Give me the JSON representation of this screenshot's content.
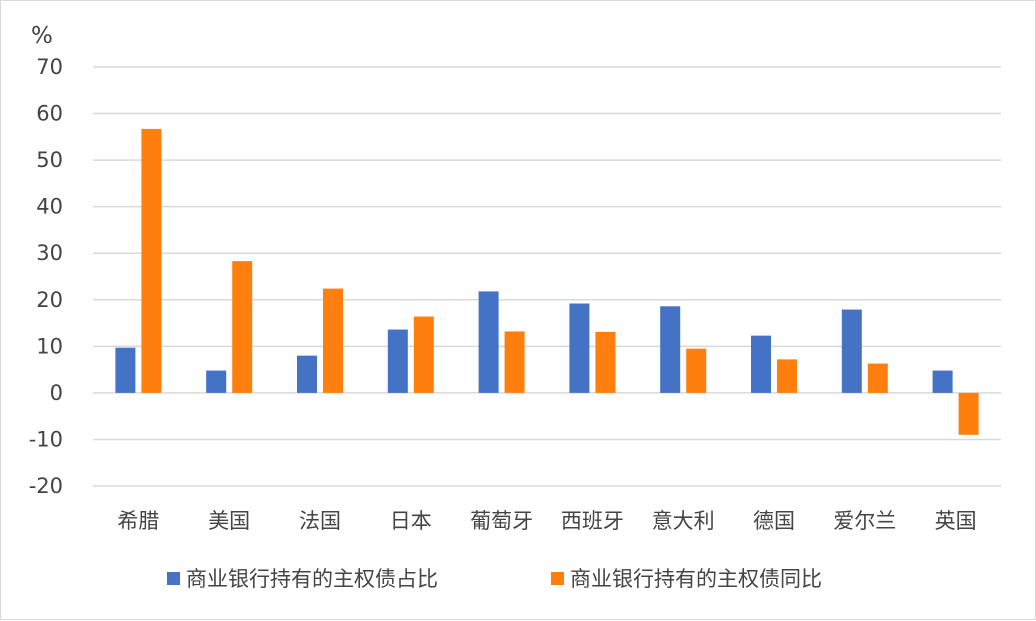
{
  "chart_data": {
    "type": "bar",
    "unit": "%",
    "categories": [
      "希腊",
      "美国",
      "法国",
      "日本",
      "葡萄牙",
      "西班牙",
      "意大利",
      "德国",
      "爱尔兰",
      "英国"
    ],
    "series": [
      {
        "name": "商业银行持有的主权债占比",
        "color": "#4472C4",
        "values": [
          9.7,
          4.8,
          8.0,
          13.6,
          21.8,
          19.2,
          18.6,
          12.3,
          17.9,
          4.8
        ]
      },
      {
        "name": "商业银行持有的主权债同比",
        "color": "#FF7F0E",
        "values": [
          56.7,
          28.3,
          22.4,
          16.4,
          13.2,
          13.1,
          9.5,
          7.2,
          6.3,
          -9.0
        ]
      }
    ],
    "ylim": [
      -20,
      70
    ],
    "yticks": [
      70,
      60,
      50,
      40,
      30,
      20,
      10,
      0,
      -10,
      -20
    ],
    "grid": true,
    "legend_position": "bottom"
  }
}
